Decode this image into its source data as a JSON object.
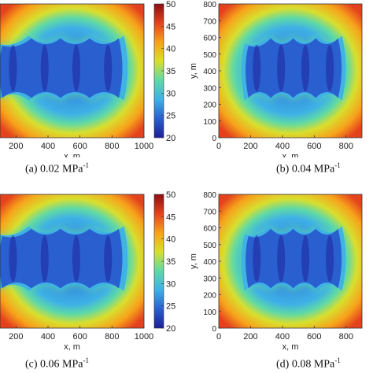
{
  "chart_data": {
    "type": "heatmap",
    "colorbar": {
      "ticks": [
        "50",
        "45",
        "40",
        "35",
        "30",
        "25",
        "20"
      ],
      "range": [
        20,
        50
      ],
      "colors": [
        "#1e1e96",
        "#2a5fd0",
        "#3eb1e6",
        "#5fd9a6",
        "#d8df2e",
        "#f7a21b",
        "#e4421d",
        "#8c0e14"
      ]
    },
    "panels": [
      {
        "caption_main": "(a) 0.02 MPa",
        "caption_sup": "-1",
        "xlabel": "x, m",
        "ylabel": "",
        "xticks": [
          "200",
          "400",
          "600",
          "800",
          "1000"
        ],
        "yticks": [],
        "xlim": [
          100,
          1000
        ],
        "ylim": [
          0,
          800
        ],
        "lobes": 4
      },
      {
        "caption_main": "(b) 0.04 MPa",
        "caption_sup": "-1",
        "xlabel": "x, m",
        "ylabel": "y, m",
        "xticks": [
          "0",
          "200",
          "400",
          "600",
          "800"
        ],
        "yticks": [
          "0",
          "100",
          "200",
          "300",
          "400",
          "500",
          "600",
          "700",
          "800"
        ],
        "xlim": [
          0,
          900
        ],
        "ylim": [
          0,
          800
        ],
        "lobes": 4
      },
      {
        "caption_main": "(c) 0.06 MPa",
        "caption_sup": "-1",
        "xlabel": "x, m",
        "ylabel": "",
        "xticks": [
          "200",
          "400",
          "600",
          "800",
          "1000"
        ],
        "yticks": [],
        "xlim": [
          100,
          1000
        ],
        "ylim": [
          0,
          800
        ],
        "lobes": 4
      },
      {
        "caption_main": "(d) 0.08 MPa",
        "caption_sup": "-1",
        "xlabel": "x, m",
        "ylabel": "y, m",
        "xticks": [
          "0",
          "200",
          "400",
          "600",
          "800"
        ],
        "yticks": [
          "0",
          "100",
          "200",
          "300",
          "400",
          "500",
          "600",
          "700",
          "800"
        ],
        "xlim": [
          0,
          900
        ],
        "ylim": [
          0,
          800
        ],
        "lobes": 4
      }
    ]
  }
}
